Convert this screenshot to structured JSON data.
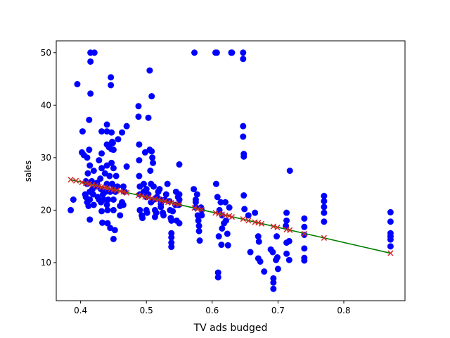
{
  "chart_data": {
    "type": "scatter",
    "title": "",
    "xlabel": "TV ads budged",
    "ylabel": "sales",
    "xlim": [
      0.363,
      0.893
    ],
    "ylim": [
      2.75,
      52.25
    ],
    "grid": false,
    "xticks": [
      0.4,
      0.5,
      0.6,
      0.7,
      0.8
    ],
    "yticks": [
      10,
      20,
      30,
      40,
      50
    ],
    "colors": {
      "points": "#0000ff",
      "fit_line": "#008000",
      "predicted": "#d62728"
    },
    "series": [
      {
        "marker": "circle",
        "points": [
          [
            0.385,
            20.0
          ],
          [
            0.389,
            22.0
          ],
          [
            0.395,
            44.0
          ],
          [
            0.402,
            31.0
          ],
          [
            0.403,
            35.0
          ],
          [
            0.405,
            30.5
          ],
          [
            0.407,
            23.0
          ],
          [
            0.408,
            25.5
          ],
          [
            0.408,
            22.5
          ],
          [
            0.41,
            30.0
          ],
          [
            0.41,
            25.0
          ],
          [
            0.41,
            21.5
          ],
          [
            0.411,
            27.0
          ],
          [
            0.412,
            20.8
          ],
          [
            0.413,
            37.2
          ],
          [
            0.413,
            31.5
          ],
          [
            0.414,
            28.5
          ],
          [
            0.414,
            23.5
          ],
          [
            0.414,
            22.0
          ],
          [
            0.414,
            18.2
          ],
          [
            0.415,
            42.2
          ],
          [
            0.415,
            48.3
          ],
          [
            0.415,
            50.0
          ],
          [
            0.417,
            25.5
          ],
          [
            0.418,
            24.0
          ],
          [
            0.419,
            23.0
          ],
          [
            0.42,
            21.0
          ],
          [
            0.42,
            27.5
          ],
          [
            0.421,
            50.0
          ],
          [
            0.425,
            25.2
          ],
          [
            0.425,
            24.5
          ],
          [
            0.426,
            22.5
          ],
          [
            0.428,
            29.5
          ],
          [
            0.428,
            22.0
          ],
          [
            0.43,
            26.0
          ],
          [
            0.431,
            24.0
          ],
          [
            0.431,
            21.5
          ],
          [
            0.432,
            30.8
          ],
          [
            0.432,
            35.0
          ],
          [
            0.432,
            28.0
          ],
          [
            0.432,
            19.8
          ],
          [
            0.433,
            17.6
          ],
          [
            0.434,
            23.0
          ],
          [
            0.435,
            22.0
          ],
          [
            0.437,
            27.0
          ],
          [
            0.438,
            23.5
          ],
          [
            0.44,
            36.3
          ],
          [
            0.44,
            35.0
          ],
          [
            0.44,
            32.5
          ],
          [
            0.44,
            28.5
          ],
          [
            0.44,
            25.0
          ],
          [
            0.44,
            21.0
          ],
          [
            0.441,
            20.0
          ],
          [
            0.441,
            17.5
          ],
          [
            0.442,
            22.0
          ],
          [
            0.443,
            32.0
          ],
          [
            0.444,
            26.5
          ],
          [
            0.445,
            23.5
          ],
          [
            0.445,
            16.6
          ],
          [
            0.446,
            45.3
          ],
          [
            0.446,
            43.8
          ],
          [
            0.447,
            34.8
          ],
          [
            0.447,
            31.6
          ],
          [
            0.447,
            29.0
          ],
          [
            0.448,
            33.0
          ],
          [
            0.448,
            25.0
          ],
          [
            0.449,
            32.8
          ],
          [
            0.45,
            31.5
          ],
          [
            0.45,
            28.0
          ],
          [
            0.45,
            24.0
          ],
          [
            0.45,
            22.0
          ],
          [
            0.45,
            20.0
          ],
          [
            0.45,
            14.5
          ],
          [
            0.452,
            16.2
          ],
          [
            0.453,
            23.5
          ],
          [
            0.454,
            26.5
          ],
          [
            0.456,
            24.5
          ],
          [
            0.457,
            33.5
          ],
          [
            0.46,
            20.8
          ],
          [
            0.46,
            19.0
          ],
          [
            0.463,
            34.8
          ],
          [
            0.463,
            21.5
          ],
          [
            0.465,
            24.5
          ],
          [
            0.465,
            21.0
          ],
          [
            0.467,
            23.5
          ],
          [
            0.47,
            28.3
          ],
          [
            0.47,
            36.0
          ],
          [
            0.488,
            39.8
          ],
          [
            0.488,
            37.8
          ],
          [
            0.489,
            32.5
          ],
          [
            0.489,
            29.5
          ],
          [
            0.489,
            26.5
          ],
          [
            0.49,
            24.5
          ],
          [
            0.49,
            23.0
          ],
          [
            0.49,
            20.0
          ],
          [
            0.493,
            19.0
          ],
          [
            0.494,
            18.5
          ],
          [
            0.496,
            25.0
          ],
          [
            0.496,
            23.5
          ],
          [
            0.498,
            31.0
          ],
          [
            0.5,
            24.0
          ],
          [
            0.5,
            22.5
          ],
          [
            0.5,
            20.0
          ],
          [
            0.501,
            19.5
          ],
          [
            0.503,
            23.0
          ],
          [
            0.503,
            37.6
          ],
          [
            0.505,
            46.6
          ],
          [
            0.505,
            31.5
          ],
          [
            0.506,
            27.5
          ],
          [
            0.507,
            25.0
          ],
          [
            0.507,
            21.5
          ],
          [
            0.508,
            41.7
          ],
          [
            0.508,
            31.2
          ],
          [
            0.509,
            30.0
          ],
          [
            0.51,
            29.0
          ],
          [
            0.511,
            24.5
          ],
          [
            0.511,
            22.0
          ],
          [
            0.513,
            20.0
          ],
          [
            0.513,
            18.7
          ],
          [
            0.515,
            19.5
          ],
          [
            0.516,
            22.5
          ],
          [
            0.518,
            23.5
          ],
          [
            0.52,
            24.0
          ],
          [
            0.521,
            22.0
          ],
          [
            0.522,
            20.6
          ],
          [
            0.522,
            21.2
          ],
          [
            0.525,
            19.5
          ],
          [
            0.526,
            19.0
          ],
          [
            0.528,
            22.0
          ],
          [
            0.53,
            23.0
          ],
          [
            0.532,
            25.0
          ],
          [
            0.535,
            21.7
          ],
          [
            0.536,
            20.0
          ],
          [
            0.537,
            18.5
          ],
          [
            0.538,
            15.6
          ],
          [
            0.538,
            14.8
          ],
          [
            0.538,
            13.8
          ],
          [
            0.538,
            13.0
          ],
          [
            0.538,
            18.0
          ],
          [
            0.54,
            19.8
          ],
          [
            0.544,
            21.0
          ],
          [
            0.545,
            23.5
          ],
          [
            0.546,
            18.0
          ],
          [
            0.548,
            22.5
          ],
          [
            0.549,
            21.0
          ],
          [
            0.55,
            28.7
          ],
          [
            0.55,
            23.0
          ],
          [
            0.55,
            22.0
          ],
          [
            0.55,
            17.5
          ],
          [
            0.572,
            24.0
          ],
          [
            0.573,
            50.0
          ],
          [
            0.575,
            22.0
          ],
          [
            0.575,
            21.5
          ],
          [
            0.575,
            20.5
          ],
          [
            0.577,
            23.0
          ],
          [
            0.578,
            19.0
          ],
          [
            0.579,
            18.0
          ],
          [
            0.58,
            17.0
          ],
          [
            0.58,
            16.0
          ],
          [
            0.581,
            14.2
          ],
          [
            0.583,
            20.5
          ],
          [
            0.584,
            20.0
          ],
          [
            0.584,
            19.0
          ],
          [
            0.605,
            50.0
          ],
          [
            0.606,
            25.0
          ],
          [
            0.607,
            50.0
          ],
          [
            0.608,
            22.5
          ],
          [
            0.609,
            8.1
          ],
          [
            0.609,
            7.2
          ],
          [
            0.61,
            15.0
          ],
          [
            0.611,
            20.0
          ],
          [
            0.613,
            21.5
          ],
          [
            0.614,
            13.4
          ],
          [
            0.615,
            16.5
          ],
          [
            0.615,
            19.0
          ],
          [
            0.618,
            17.5
          ],
          [
            0.62,
            21.5
          ],
          [
            0.621,
            18.0
          ],
          [
            0.623,
            15.5
          ],
          [
            0.624,
            13.3
          ],
          [
            0.626,
            20.5
          ],
          [
            0.629,
            50.0
          ],
          [
            0.63,
            50.0
          ],
          [
            0.647,
            50.0
          ],
          [
            0.647,
            48.8
          ],
          [
            0.647,
            36.0
          ],
          [
            0.647,
            34.0
          ],
          [
            0.648,
            30.7
          ],
          [
            0.648,
            30.2
          ],
          [
            0.648,
            22.8
          ],
          [
            0.649,
            20.2
          ],
          [
            0.655,
            19.0
          ],
          [
            0.658,
            12.0
          ],
          [
            0.665,
            19.5
          ],
          [
            0.67,
            15.0
          ],
          [
            0.671,
            14.0
          ],
          [
            0.67,
            10.8
          ],
          [
            0.673,
            10.2
          ],
          [
            0.679,
            8.3
          ],
          [
            0.689,
            12.5
          ],
          [
            0.692,
            12.0
          ],
          [
            0.693,
            7.0
          ],
          [
            0.693,
            6.2
          ],
          [
            0.693,
            5.0
          ],
          [
            0.697,
            10.5
          ],
          [
            0.698,
            15.0
          ],
          [
            0.699,
            11.0
          ],
          [
            0.7,
            8.8
          ],
          [
            0.712,
            17.0
          ],
          [
            0.713,
            19.5
          ],
          [
            0.713,
            18.0
          ],
          [
            0.713,
            13.8
          ],
          [
            0.713,
            11.7
          ],
          [
            0.717,
            14.1
          ],
          [
            0.717,
            10.5
          ],
          [
            0.718,
            27.5
          ],
          [
            0.74,
            18.4
          ],
          [
            0.74,
            16.8
          ],
          [
            0.74,
            15.3
          ],
          [
            0.74,
            12.7
          ],
          [
            0.74,
            10.9
          ],
          [
            0.74,
            10.4
          ],
          [
            0.77,
            22.7
          ],
          [
            0.77,
            21.7
          ],
          [
            0.77,
            20.6
          ],
          [
            0.77,
            19.5
          ],
          [
            0.77,
            17.8
          ],
          [
            0.871,
            19.6
          ],
          [
            0.871,
            17.8
          ],
          [
            0.871,
            15.6
          ],
          [
            0.871,
            15.0
          ],
          [
            0.871,
            14.4
          ],
          [
            0.871,
            13.1
          ]
        ]
      },
      {
        "marker": "line",
        "points": [
          [
            0.385,
            25.8
          ],
          [
            0.871,
            11.8
          ]
        ]
      },
      {
        "marker": "x",
        "points": [
          [
            0.385,
            25.8
          ],
          [
            0.393,
            25.6
          ],
          [
            0.402,
            25.3
          ],
          [
            0.408,
            25.1
          ],
          [
            0.413,
            25.0
          ],
          [
            0.418,
            24.8
          ],
          [
            0.423,
            24.7
          ],
          [
            0.428,
            24.5
          ],
          [
            0.432,
            24.4
          ],
          [
            0.437,
            24.3
          ],
          [
            0.441,
            24.2
          ],
          [
            0.446,
            24.0
          ],
          [
            0.45,
            23.9
          ],
          [
            0.455,
            23.8
          ],
          [
            0.46,
            23.6
          ],
          [
            0.465,
            23.5
          ],
          [
            0.47,
            23.3
          ],
          [
            0.488,
            22.8
          ],
          [
            0.493,
            22.7
          ],
          [
            0.498,
            22.5
          ],
          [
            0.503,
            22.4
          ],
          [
            0.508,
            22.3
          ],
          [
            0.513,
            22.1
          ],
          [
            0.518,
            22.0
          ],
          [
            0.523,
            21.8
          ],
          [
            0.528,
            21.7
          ],
          [
            0.533,
            21.5
          ],
          [
            0.538,
            21.4
          ],
          [
            0.544,
            21.2
          ],
          [
            0.55,
            21.1
          ],
          [
            0.573,
            20.4
          ],
          [
            0.578,
            20.2
          ],
          [
            0.584,
            20.1
          ],
          [
            0.605,
            19.5
          ],
          [
            0.61,
            19.3
          ],
          [
            0.615,
            19.2
          ],
          [
            0.62,
            19.0
          ],
          [
            0.626,
            18.9
          ],
          [
            0.63,
            18.7
          ],
          [
            0.647,
            18.3
          ],
          [
            0.655,
            18.0
          ],
          [
            0.665,
            17.7
          ],
          [
            0.67,
            17.6
          ],
          [
            0.675,
            17.4
          ],
          [
            0.693,
            16.9
          ],
          [
            0.699,
            16.7
          ],
          [
            0.713,
            16.3
          ],
          [
            0.718,
            16.2
          ],
          [
            0.74,
            15.5
          ],
          [
            0.77,
            14.7
          ],
          [
            0.871,
            11.8
          ]
        ]
      }
    ]
  }
}
